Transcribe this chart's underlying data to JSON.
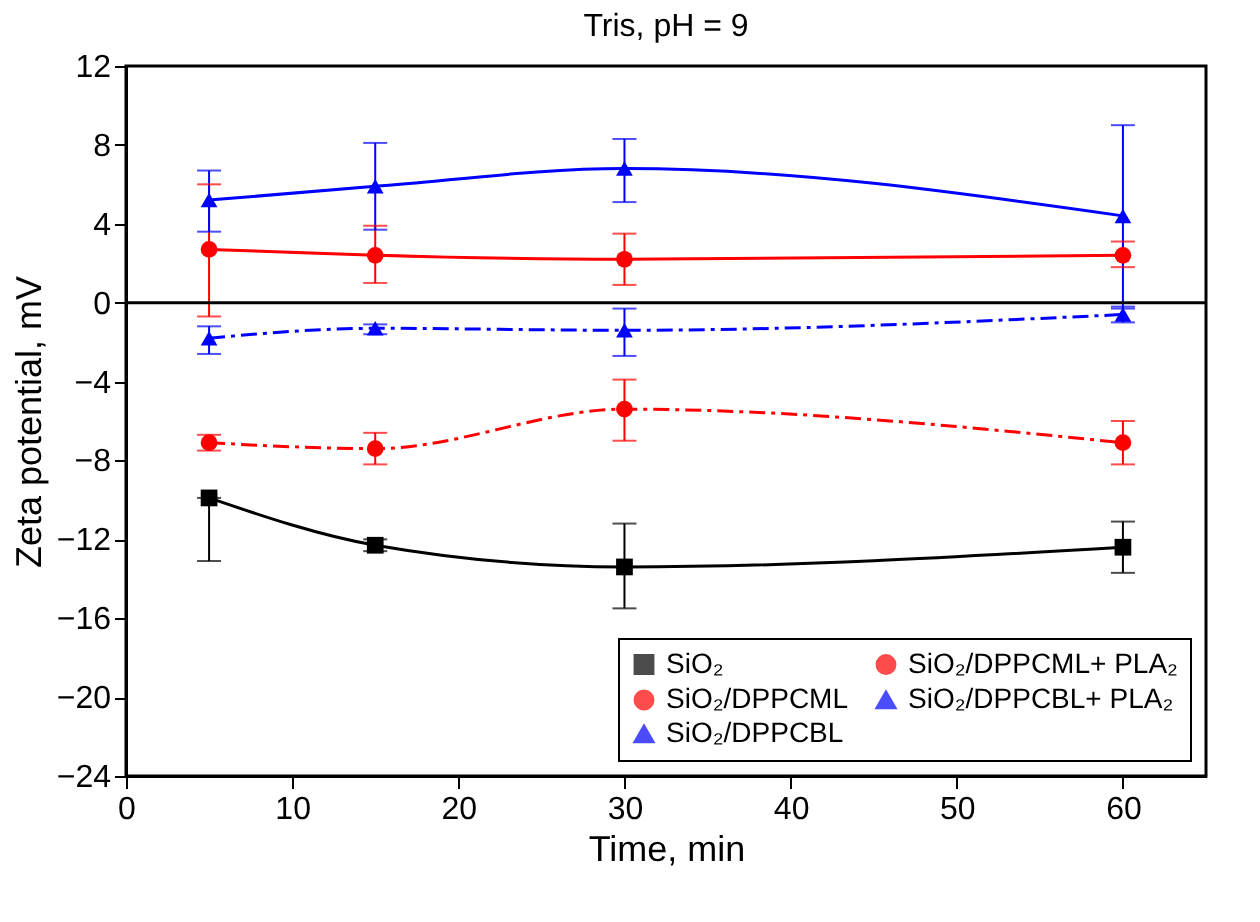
{
  "chart_data": {
    "type": "line",
    "title": "Tris, pH = 9",
    "xlabel": "Time, min",
    "ylabel": "Zeta potential, mV",
    "x": [
      5,
      15,
      30,
      60
    ],
    "series": [
      {
        "name": "SiO₂",
        "color": "#000000",
        "marker": "square",
        "line_style": "solid",
        "values": [
          -9.9,
          -12.3,
          -13.4,
          -12.4
        ],
        "errors": [
          [
            -13.1,
            -9.9
          ],
          [
            -12.6,
            -12.0
          ],
          [
            -15.5,
            -11.2
          ],
          [
            -13.7,
            -11.1
          ]
        ]
      },
      {
        "name": "SiO₂/DPPCML",
        "color": "#ff0000",
        "marker": "circle",
        "line_style": "solid",
        "values": [
          2.7,
          2.4,
          2.2,
          2.4
        ],
        "errors": [
          [
            -0.7,
            6.0
          ],
          [
            1.0,
            3.9
          ],
          [
            0.9,
            3.5
          ],
          [
            1.8,
            3.1
          ]
        ]
      },
      {
        "name": "SiO₂/DPPCBL",
        "color": "#0000ff",
        "marker": "triangle",
        "line_style": "solid",
        "values": [
          5.2,
          5.9,
          6.8,
          4.4
        ],
        "errors": [
          [
            3.6,
            6.7
          ],
          [
            3.7,
            8.1
          ],
          [
            5.1,
            8.3
          ],
          [
            -0.3,
            9.0
          ]
        ]
      },
      {
        "name": "SiO₂/DPPCML+ PLA₂",
        "color": "#ff0000",
        "marker": "circle",
        "line_style": "dashed",
        "values": [
          -7.1,
          -7.4,
          -5.4,
          -7.1
        ],
        "errors": [
          [
            -7.5,
            -6.7
          ],
          [
            -8.2,
            -6.6
          ],
          [
            -7.0,
            -3.9
          ],
          [
            -8.2,
            -6.0
          ]
        ]
      },
      {
        "name": "SiO₂/DPPCBL+ PLA₂",
        "color": "#0000ff",
        "marker": "triangle",
        "line_style": "dashed",
        "values": [
          -1.8,
          -1.3,
          -1.4,
          -0.6
        ],
        "errors": [
          [
            -2.6,
            -1.2
          ],
          [
            -1.6,
            -1.1
          ],
          [
            -2.7,
            -0.3
          ],
          [
            -1.0,
            -0.2
          ]
        ]
      }
    ],
    "ref_lines": [
      {
        "axis": "y",
        "value": 0,
        "color": "#000000"
      }
    ],
    "xlim": [
      0,
      65
    ],
    "xticks": [
      0,
      10,
      20,
      30,
      40,
      50,
      60
    ],
    "ylim": [
      -24,
      12
    ],
    "yticks": [
      -24,
      -20,
      -16,
      -12,
      -8,
      -4,
      0,
      4,
      8,
      12
    ],
    "grid": false,
    "legend": "bottom"
  }
}
